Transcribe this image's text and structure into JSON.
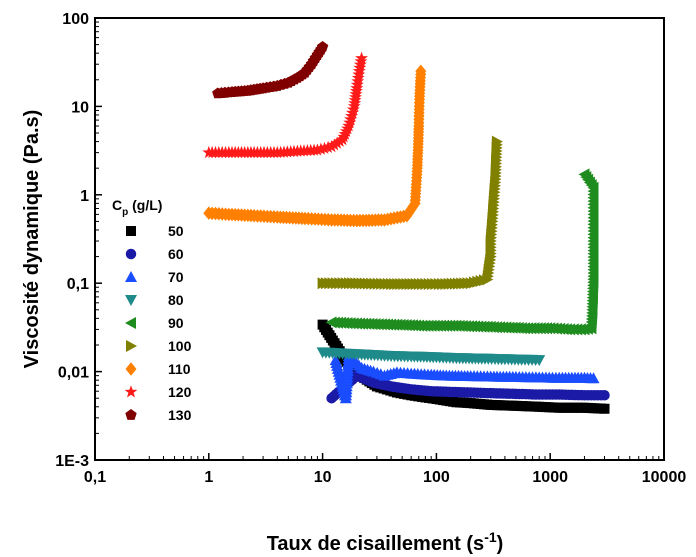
{
  "chart_data": {
    "type": "scatter",
    "title": "",
    "xlabel": "Taux de cisaillement (s",
    "xlabel_sup": "-1",
    "xlabel_close": ")",
    "ylabel": "Viscosité dynamique (Pa.s)",
    "x_scale": "log",
    "y_scale": "log",
    "xlim": [
      0.1,
      10000
    ],
    "ylim": [
      0.001,
      100
    ],
    "x_ticks": [
      {
        "value": 0.1,
        "label": "0,1"
      },
      {
        "value": 1,
        "label": "1"
      },
      {
        "value": 10,
        "label": "10"
      },
      {
        "value": 100,
        "label": "100"
      },
      {
        "value": 1000,
        "label": "1000"
      },
      {
        "value": 10000,
        "label": "10000"
      }
    ],
    "y_ticks": [
      {
        "value": 0.001,
        "label": "1E-3"
      },
      {
        "value": 0.01,
        "label": "0,01"
      },
      {
        "value": 0.1,
        "label": "0,1"
      },
      {
        "value": 1,
        "label": "1"
      },
      {
        "value": 10,
        "label": "10"
      },
      {
        "value": 100,
        "label": "100"
      }
    ],
    "grid": false,
    "legend": {
      "placement": "left",
      "title_main": "C",
      "title_sub": "p",
      "title_rest": " (g/L)"
    },
    "series": [
      {
        "name": "50",
        "color": "#000000",
        "marker": "square",
        "points": [
          [
            10,
            0.034
          ],
          [
            18,
            0.0105
          ],
          [
            30,
            0.0068
          ],
          [
            45,
            0.0058
          ],
          [
            60,
            0.0054
          ],
          [
            80,
            0.0051
          ],
          [
            100,
            0.0049
          ],
          [
            150,
            0.0045
          ],
          [
            200,
            0.0044
          ],
          [
            300,
            0.0042
          ],
          [
            500,
            0.0041
          ],
          [
            800,
            0.004
          ],
          [
            1200,
            0.0039
          ],
          [
            2000,
            0.0039
          ],
          [
            3000,
            0.0038
          ]
        ]
      },
      {
        "name": "60",
        "color": "#1a1aa6",
        "marker": "circle",
        "points": [
          [
            12,
            0.005
          ],
          [
            20,
            0.009
          ],
          [
            28,
            0.0075
          ],
          [
            40,
            0.0068
          ],
          [
            60,
            0.0063
          ],
          [
            90,
            0.006
          ],
          [
            130,
            0.0059
          ],
          [
            200,
            0.0058
          ],
          [
            300,
            0.0057
          ],
          [
            500,
            0.0056
          ],
          [
            800,
            0.0055
          ],
          [
            1200,
            0.0055
          ],
          [
            2000,
            0.0054
          ],
          [
            3000,
            0.0054
          ]
        ]
      },
      {
        "name": "70",
        "color": "#1a4dff",
        "marker": "triangle-up",
        "points": [
          [
            13,
            0.0135
          ],
          [
            16,
            0.005
          ],
          [
            17,
            0.015
          ],
          [
            22,
            0.011
          ],
          [
            28,
            0.01
          ],
          [
            35,
            0.009
          ],
          [
            45,
            0.0098
          ],
          [
            60,
            0.0095
          ],
          [
            90,
            0.0092
          ],
          [
            130,
            0.009
          ],
          [
            200,
            0.0089
          ],
          [
            300,
            0.0088
          ],
          [
            500,
            0.0087
          ],
          [
            800,
            0.0086
          ],
          [
            1200,
            0.0085
          ],
          [
            2000,
            0.0085
          ],
          [
            2400,
            0.0084
          ]
        ]
      },
      {
        "name": "80",
        "color": "#1f8a8a",
        "marker": "triangle-down",
        "points": [
          [
            10,
            0.0165
          ],
          [
            15,
            0.016
          ],
          [
            25,
            0.0155
          ],
          [
            40,
            0.015
          ],
          [
            60,
            0.0148
          ],
          [
            100,
            0.0145
          ],
          [
            150,
            0.0142
          ],
          [
            250,
            0.014
          ],
          [
            400,
            0.0138
          ],
          [
            600,
            0.0136
          ],
          [
            800,
            0.0135
          ]
        ]
      },
      {
        "name": "90",
        "color": "#1e8c1e",
        "marker": "triangle-left",
        "points": [
          [
            12,
            0.036
          ],
          [
            20,
            0.035
          ],
          [
            40,
            0.034
          ],
          [
            80,
            0.033
          ],
          [
            150,
            0.033
          ],
          [
            300,
            0.032
          ],
          [
            600,
            0.031
          ],
          [
            1000,
            0.031
          ],
          [
            1500,
            0.03
          ],
          [
            2000,
            0.03
          ],
          [
            2300,
            0.031
          ],
          [
            2350,
            0.05
          ],
          [
            2400,
            0.12
          ],
          [
            2400,
            0.3
          ],
          [
            2400,
            0.6
          ],
          [
            2400,
            1.2
          ],
          [
            2000,
            1.7
          ]
        ]
      },
      {
        "name": "100",
        "color": "#808000",
        "marker": "triangle-right",
        "points": [
          [
            10,
            0.1
          ],
          [
            15,
            0.1
          ],
          [
            25,
            0.099
          ],
          [
            40,
            0.098
          ],
          [
            70,
            0.098
          ],
          [
            120,
            0.098
          ],
          [
            200,
            0.1
          ],
          [
            280,
            0.11
          ],
          [
            300,
            0.2
          ],
          [
            300,
            0.3
          ],
          [
            310,
            0.5
          ],
          [
            320,
            0.9
          ],
          [
            330,
            1.5
          ],
          [
            340,
            4
          ]
        ]
      },
      {
        "name": "110",
        "color": "#ff8000",
        "marker": "diamond",
        "points": [
          [
            1,
            0.62
          ],
          [
            1.5,
            0.6
          ],
          [
            2.5,
            0.58
          ],
          [
            4,
            0.56
          ],
          [
            7,
            0.54
          ],
          [
            12,
            0.52
          ],
          [
            20,
            0.51
          ],
          [
            35,
            0.52
          ],
          [
            55,
            0.58
          ],
          [
            65,
            0.8
          ],
          [
            68,
            2
          ],
          [
            70,
            6
          ],
          [
            71,
            12
          ],
          [
            72,
            18
          ],
          [
            73,
            25
          ]
        ]
      },
      {
        "name": "120",
        "color": "#ff1a1a",
        "marker": "star",
        "points": [
          [
            1,
            3
          ],
          [
            1.5,
            3
          ],
          [
            2.5,
            3
          ],
          [
            4,
            3
          ],
          [
            6,
            3.1
          ],
          [
            9,
            3.2
          ],
          [
            12,
            3.5
          ],
          [
            15,
            4.2
          ],
          [
            17,
            6
          ],
          [
            19,
            10
          ],
          [
            20,
            16
          ],
          [
            21,
            25
          ],
          [
            22,
            35
          ]
        ]
      },
      {
        "name": "130",
        "color": "#800000",
        "marker": "pentagon",
        "points": [
          [
            1.2,
            14
          ],
          [
            1.6,
            14.5
          ],
          [
            2.2,
            15
          ],
          [
            3,
            16
          ],
          [
            4,
            17
          ],
          [
            5,
            18.5
          ],
          [
            6,
            21
          ],
          [
            7,
            24
          ],
          [
            8,
            30
          ],
          [
            9,
            38
          ],
          [
            10,
            47
          ]
        ]
      }
    ]
  }
}
